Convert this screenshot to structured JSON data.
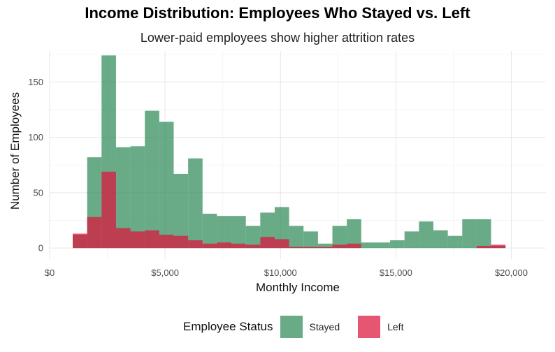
{
  "chart_data": {
    "type": "bar",
    "title": "Income Distribution: Employees Who Stayed vs. Left",
    "subtitle": "Lower-paid employees show higher attrition rates",
    "xlabel": "Monthly Income",
    "ylabel": "Number of Employees",
    "xlim": [
      0,
      21500
    ],
    "ylim": [
      -10,
      178
    ],
    "x_ticks": [
      0,
      5000,
      10000,
      15000,
      20000
    ],
    "x_tick_labels": [
      "$0",
      "$5,000",
      "$10,000",
      "$15,000",
      "$20,000"
    ],
    "y_ticks": [
      0,
      50,
      100,
      150
    ],
    "y_tick_labels": [
      "0",
      "50",
      "100",
      "150"
    ],
    "bin_width": 625,
    "bin_starts": [
      1000,
      1625,
      2250,
      2875,
      3500,
      4125,
      4750,
      5375,
      6000,
      6625,
      7250,
      7875,
      8500,
      9125,
      9750,
      10375,
      11000,
      11625,
      12250,
      12875,
      13500,
      14125,
      14750,
      15375,
      16000,
      16625,
      17250,
      17875,
      18500,
      19125,
      19750
    ],
    "series": [
      {
        "name": "Stayed",
        "color": "#2e8b57",
        "values": [
          12,
          82,
          174,
          91,
          92,
          124,
          114,
          67,
          81,
          31,
          29,
          29,
          20,
          32,
          37,
          20,
          15,
          4,
          20,
          26,
          5,
          5,
          7,
          15,
          24,
          16,
          11,
          26,
          26,
          2,
          0
        ]
      },
      {
        "name": "Left",
        "color": "#dc143c",
        "values": [
          13,
          28,
          69,
          18,
          15,
          16,
          12,
          11,
          7,
          4,
          5,
          4,
          3,
          10,
          8,
          1,
          1,
          1,
          3,
          4,
          0,
          0,
          0,
          0,
          0,
          0,
          0,
          0,
          2,
          3,
          0
        ]
      }
    ],
    "legend_title": "Employee Status",
    "legend_position": "bottom",
    "grid": true
  }
}
